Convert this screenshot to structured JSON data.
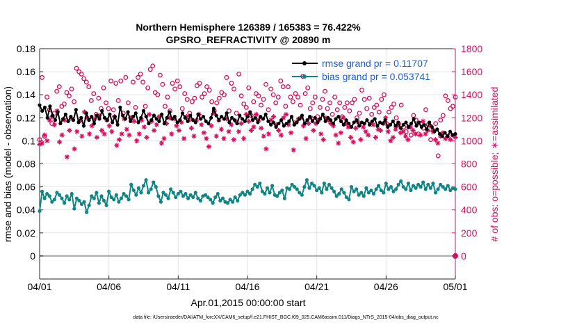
{
  "chart_data": {
    "type": "line",
    "title": "Northern Hemisphere 126389 / 165383 = 76.422%",
    "subtitle": "GPSRO_REFRACTIVITY @ 20890 m",
    "xlabel": "Apr.01,2015 00:00:00 start",
    "ylabel": "rmse and bias (model - observation)",
    "y2label": "# of obs: o=possible; ∗=assimilated",
    "footnote": "data file: /Users/raeder/DAI/ATM_forcXX/CAM6_setup/f.e21.FHIST_BGC.f09_025.CAM6assim.011/Diags_NTrS_2015-04/obs_diag_output.nc",
    "xlim": [
      0,
      30
    ],
    "ylim": [
      -0.02,
      0.18
    ],
    "y2lim": [
      -200,
      1800
    ],
    "x_ticks": [
      0,
      5,
      10,
      15,
      20,
      25,
      30
    ],
    "x_tick_labels": [
      "04/01",
      "04/06",
      "04/11",
      "04/16",
      "04/21",
      "04/26",
      "05/01"
    ],
    "y_ticks": [
      0,
      0.02,
      0.04,
      0.06,
      0.08,
      0.1,
      0.12,
      0.14,
      0.16,
      0.18
    ],
    "y_tick_labels": [
      "0",
      "0.02",
      "0.04",
      "0.06",
      "0.08",
      "0.1",
      "0.12",
      "0.14",
      "0.16",
      "0.18"
    ],
    "y2_ticks": [
      0,
      200,
      400,
      600,
      800,
      1000,
      1200,
      1400,
      1600,
      1800
    ],
    "y2_tick_labels": [
      "0",
      "200",
      "400",
      "600",
      "800",
      "1000",
      "1200",
      "1400",
      "1600",
      "1800"
    ],
    "grid": true,
    "legend_position": "top-right",
    "legend": [
      "rmse grand pr = 0.11707",
      "bias grand pr = 0.053741"
    ],
    "series": [
      {
        "name": "rmse",
        "color": "#000000",
        "marker": "filled-circle",
        "values": [
          0.131,
          0.126,
          0.129,
          0.12,
          0.13,
          0.122,
          0.118,
          0.125,
          0.115,
          0.119,
          0.123,
          0.117,
          0.121,
          0.118,
          0.127,
          0.116,
          0.12,
          0.113,
          0.124,
          0.118,
          0.121,
          0.115,
          0.122,
          0.119,
          0.126,
          0.12,
          0.118,
          0.123,
          0.116,
          0.121,
          0.114,
          0.129,
          0.122,
          0.119,
          0.125,
          0.117,
          0.121,
          0.124,
          0.116,
          0.12,
          0.126,
          0.121,
          0.115,
          0.118,
          0.122,
          0.119,
          0.117,
          0.123,
          0.115,
          0.12,
          0.125,
          0.119,
          0.121,
          0.116,
          0.118,
          0.124,
          0.12,
          0.117,
          0.122,
          0.118,
          0.116,
          0.123,
          0.119,
          0.121,
          0.117,
          0.115,
          0.12,
          0.128,
          0.122,
          0.118,
          0.121,
          0.119,
          0.124,
          0.116,
          0.12,
          0.118,
          0.115,
          0.122,
          0.119,
          0.117,
          0.121,
          0.125,
          0.118,
          0.12,
          0.116,
          0.121,
          0.119,
          0.123,
          0.117,
          0.114,
          0.116,
          0.112,
          0.115,
          0.118,
          0.113,
          0.115,
          0.117,
          0.121,
          0.114,
          0.116,
          0.119,
          0.122,
          0.115,
          0.118,
          0.121,
          0.117,
          0.12,
          0.116,
          0.119,
          0.123,
          0.117,
          0.12,
          0.118,
          0.115,
          0.119,
          0.121,
          0.117,
          0.114,
          0.118,
          0.115,
          0.112,
          0.116,
          0.118,
          0.113,
          0.116,
          0.115,
          0.118,
          0.114,
          0.117,
          0.119,
          0.113,
          0.116,
          0.115,
          0.118,
          0.112,
          0.114,
          0.117,
          0.113,
          0.116,
          0.111,
          0.114,
          0.116,
          0.112,
          0.115,
          0.119,
          0.113,
          0.116,
          0.112,
          0.114,
          0.11,
          0.116,
          0.112,
          0.108,
          0.11,
          0.106,
          0.104,
          0.107,
          0.104,
          0.108,
          0.105,
          0.106
        ]
      },
      {
        "name": "bias",
        "color": "#118585",
        "marker": "filled-circle",
        "values": [
          0.039,
          0.056,
          0.05,
          0.054,
          0.052,
          0.047,
          0.049,
          0.055,
          0.053,
          0.05,
          0.046,
          0.052,
          0.049,
          0.054,
          0.041,
          0.05,
          0.048,
          0.045,
          0.047,
          0.038,
          0.044,
          0.052,
          0.05,
          0.055,
          0.046,
          0.052,
          0.048,
          0.044,
          0.056,
          0.051,
          0.049,
          0.053,
          0.047,
          0.05,
          0.054,
          0.052,
          0.049,
          0.062,
          0.057,
          0.053,
          0.059,
          0.055,
          0.061,
          0.066,
          0.055,
          0.058,
          0.064,
          0.06,
          0.052,
          0.047,
          0.055,
          0.053,
          0.05,
          0.058,
          0.055,
          0.051,
          0.054,
          0.056,
          0.052,
          0.054,
          0.05,
          0.053,
          0.051,
          0.055,
          0.05,
          0.048,
          0.052,
          0.053,
          0.051,
          0.049,
          0.046,
          0.051,
          0.054,
          0.048,
          0.05,
          0.047,
          0.046,
          0.049,
          0.047,
          0.051,
          0.048,
          0.053,
          0.055,
          0.053,
          0.056,
          0.054,
          0.058,
          0.062,
          0.06,
          0.063,
          0.056,
          0.054,
          0.059,
          0.055,
          0.061,
          0.053,
          0.052,
          0.055,
          0.057,
          0.05,
          0.059,
          0.058,
          0.062,
          0.06,
          0.058,
          0.055,
          0.053,
          0.06,
          0.066,
          0.059,
          0.063,
          0.061,
          0.057,
          0.059,
          0.055,
          0.063,
          0.058,
          0.062,
          0.059,
          0.056,
          0.052,
          0.054,
          0.058,
          0.055,
          0.051,
          0.049,
          0.06,
          0.056,
          0.058,
          0.053,
          0.055,
          0.052,
          0.059,
          0.055,
          0.057,
          0.054,
          0.058,
          0.061,
          0.057,
          0.055,
          0.063,
          0.058,
          0.06,
          0.056,
          0.058,
          0.062,
          0.065,
          0.06,
          0.058,
          0.063,
          0.057,
          0.061,
          0.059,
          0.062,
          0.06,
          0.064,
          0.058,
          0.062,
          0.059,
          0.063,
          0.055,
          0.058,
          0.062,
          0.06,
          0.058,
          0.061,
          0.057,
          0.059,
          0.058
        ]
      },
      {
        "name": "possible",
        "axis": "right",
        "color": "#d6105f",
        "marker": "open-circle",
        "values": [
          1010,
          1550,
          1040,
          1380,
          1270,
          1150,
          1240,
          1430,
          1470,
          1300,
          1320,
          1420,
          1390,
          1450,
          1340,
          1630,
          1600,
          1580,
          1540,
          1510,
          1470,
          1350,
          1410,
          1230,
          1370,
          1280,
          1460,
          1330,
          1280,
          1520,
          1270,
          1500,
          1350,
          1520,
          1240,
          1550,
          1330,
          1200,
          1510,
          1290,
          1550,
          1580,
          1510,
          1300,
          1460,
          1620,
          1650,
          1420,
          1400,
          1570,
          1490,
          1300,
          1380,
          1260,
          1500,
          1450,
          1520,
          1470,
          1280,
          1410,
          1360,
          1240,
          1340,
          1370,
          1480,
          1500,
          1380,
          1410,
          1470,
          1440,
          1340,
          1260,
          1330,
          1370,
          1420,
          1400,
          1550,
          1260,
          1500,
          1450,
          1240,
          1580,
          1390,
          1320,
          1290,
          1460,
          1220,
          1340,
          1410,
          1390,
          1310,
          1360,
          1490,
          1270,
          1450,
          1400,
          1330,
          1380,
          1520,
          1470,
          1300,
          1470,
          1380,
          1340,
          1410,
          1380,
          1310,
          1560,
          1410,
          1460,
          1280,
          1330,
          1380,
          1210,
          1290,
          1360,
          1430,
          1280,
          1330,
          1230,
          1380,
          1270,
          1330,
          1210,
          1290,
          1330,
          1260,
          1330,
          1360,
          1200,
          1240,
          1440,
          1360,
          1280,
          1370,
          1230,
          1290,
          1310,
          1250,
          1360,
          1400,
          1150,
          1250,
          1290,
          1320,
          1200,
          1150,
          1310,
          1120,
          1080,
          1120,
          1050,
          1220,
          1180,
          1060,
          1150,
          1110,
          1270,
          1140,
          1010,
          1090,
          1150,
          870,
          1180,
          1220,
          1390,
          1350,
          1280,
          1300,
          1380
        ]
      },
      {
        "name": "assimilated",
        "axis": "right",
        "color": "#d6105f",
        "marker": "asterisk",
        "values": [
          970,
          980,
          1050,
          1000,
          1180,
          1210,
          1140,
          1260,
          990,
          1050,
          1180,
          860,
          1090,
          1190,
          930,
          1080,
          1170,
          1040,
          1250,
          1200,
          1060,
          1130,
          1190,
          1030,
          1220,
          1090,
          1060,
          1180,
          1130,
          1080,
          1210,
          960,
          1010,
          1060,
          1190,
          1100,
          1050,
          1200,
          1170,
          1000,
          1060,
          1180,
          1120,
          1030,
          1230,
          1170,
          1090,
          1140,
          1210,
          980,
          1020,
          1150,
          1200,
          1060,
          1190,
          1130,
          1090,
          1160,
          1020,
          1210,
          1180,
          1110,
          1040,
          1180,
          1230,
          1140,
          1070,
          1020,
          950,
          1130,
          1240,
          1040,
          1180,
          1100,
          1020,
          1190,
          1080,
          1140,
          1010,
          1170,
          1080,
          1150,
          1020,
          1230,
          1170,
          1090,
          1120,
          1230,
          1180,
          1110,
          1040,
          930,
          1060,
          1180,
          1210,
          1140,
          1090,
          1050,
          1200,
          1230,
          1140,
          1070,
          920,
          1160,
          1190,
          1200,
          1130,
          1020,
          1150,
          1200,
          1090,
          1150,
          1180,
          1060,
          1010,
          1200,
          1180,
          1150,
          1130,
          1050,
          980,
          1070,
          1200,
          1150,
          1120,
          1030,
          990,
          1110,
          1160,
          1010,
          1120,
          1080,
          1050,
          1150,
          1140,
          1030,
          1100,
          1090,
          1150,
          1200,
          1080,
          1000,
          1030,
          1100,
          1130,
          1070,
          1080,
          1040,
          1010,
          1120,
          1090,
          1060,
          1150,
          1050,
          1170,
          1060,
          1090,
          1130,
          1080,
          1010,
          980,
          1040,
          1070,
          1020,
          1040,
          1010,
          1050,
          1030
        ]
      }
    ],
    "endpoint_marker": {
      "x": 30,
      "y2": 0,
      "color": "#d6105f"
    }
  }
}
